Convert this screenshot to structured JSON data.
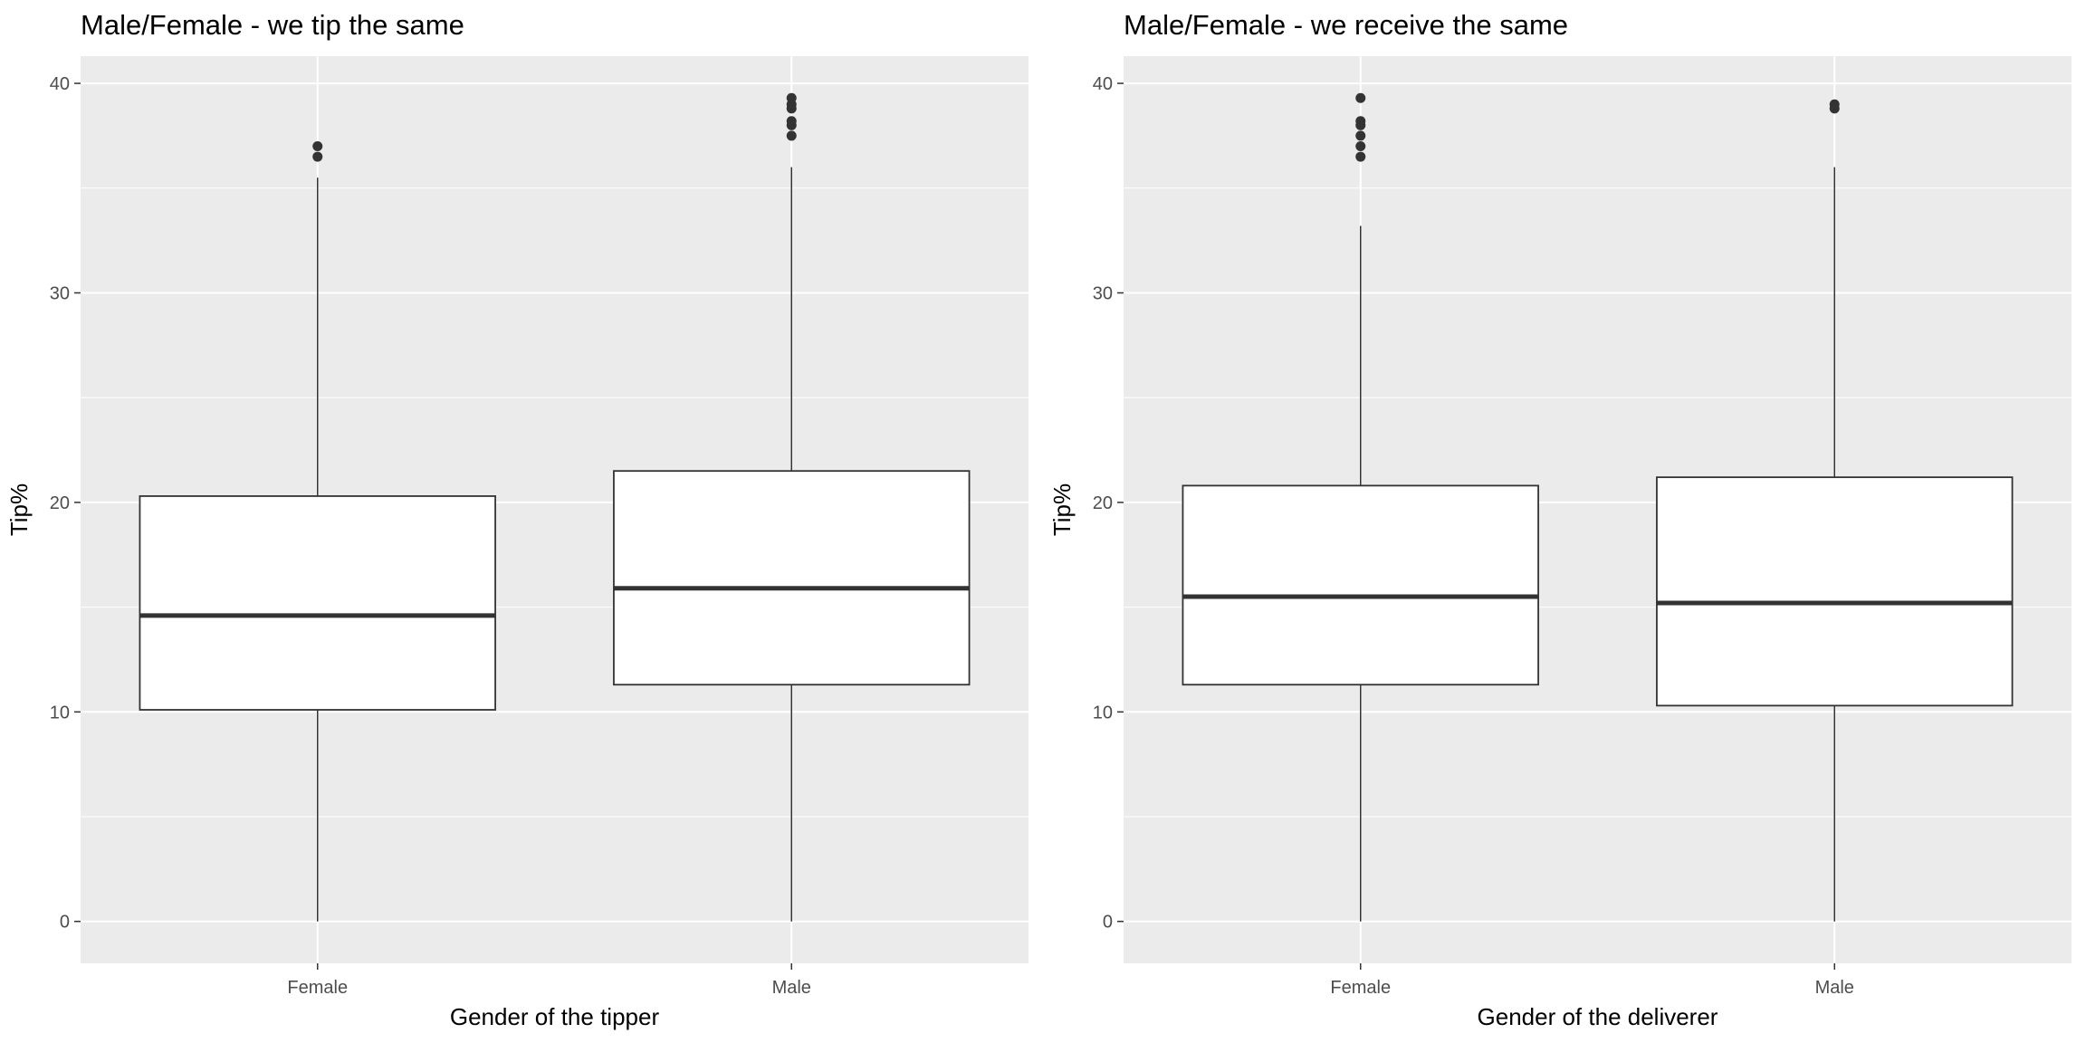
{
  "chart_data": [
    {
      "type": "boxplot",
      "title": "Male/Female - we tip the same",
      "xlabel": "Gender of the tipper",
      "ylabel": "Tip%",
      "ylim": [
        -2,
        41.3
      ],
      "yticks": [
        0,
        10,
        20,
        30,
        40
      ],
      "grid": true,
      "categories": [
        "Female",
        "Male"
      ],
      "boxes": [
        {
          "category": "Female",
          "whisker_low": 0,
          "q1": 10.1,
          "median": 14.6,
          "q3": 20.3,
          "whisker_high": 35.5,
          "outliers": [
            36.5,
            37.0
          ]
        },
        {
          "category": "Male",
          "whisker_low": 0,
          "q1": 11.3,
          "median": 15.9,
          "q3": 21.5,
          "whisker_high": 36.0,
          "outliers": [
            37.5,
            38.0,
            38.2,
            38.8,
            39.0,
            39.3
          ]
        }
      ]
    },
    {
      "type": "boxplot",
      "title": "Male/Female - we receive the same",
      "xlabel": "Gender of the deliverer",
      "ylabel": "Tip%",
      "ylim": [
        -2,
        41.3
      ],
      "yticks": [
        0,
        10,
        20,
        30,
        40
      ],
      "grid": true,
      "categories": [
        "Female",
        "Male"
      ],
      "boxes": [
        {
          "category": "Female",
          "whisker_low": 0,
          "q1": 11.3,
          "median": 15.5,
          "q3": 20.8,
          "whisker_high": 33.2,
          "outliers": [
            36.5,
            37.0,
            37.5,
            38.0,
            38.2,
            39.3
          ]
        },
        {
          "category": "Male",
          "whisker_low": 0,
          "q1": 10.3,
          "median": 15.2,
          "q3": 21.2,
          "whisker_high": 36.0,
          "outliers": [
            38.8,
            39.0
          ]
        }
      ]
    }
  ]
}
